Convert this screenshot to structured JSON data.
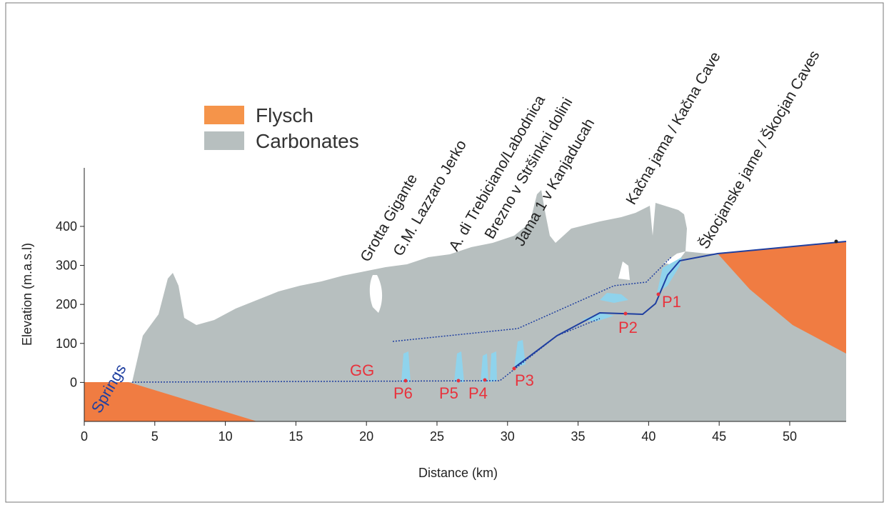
{
  "chart_data": {
    "type": "profile",
    "xlabel": "Distance (km)",
    "ylabel": "Elevation (m.a.s.l)",
    "xlim": [
      0,
      54
    ],
    "ylim": [
      -100,
      550
    ],
    "xticks": [
      0,
      5,
      10,
      15,
      20,
      25,
      30,
      35,
      40,
      45,
      50
    ],
    "yticks": [
      0,
      100,
      200,
      300,
      400
    ],
    "legend": [
      {
        "name": "Flysch",
        "color": "#f5944a"
      },
      {
        "name": "Carbonates",
        "color": "#b7bfbf"
      }
    ],
    "cave_labels": [
      "Grotta Gigante",
      "G.M. Lazzaro Jerko",
      "A. di Trebiciano/Labodnica",
      "Brezno v Stršinkni dolini",
      "Jama 1 v Kanjaducah",
      "Kačna jama / Kačna Cave",
      "Škocjanske jame / Škocjan Caves"
    ],
    "point_labels": [
      "Springs",
      "GG",
      "P6",
      "P5",
      "P4",
      "P3",
      "P2",
      "P1"
    ]
  }
}
